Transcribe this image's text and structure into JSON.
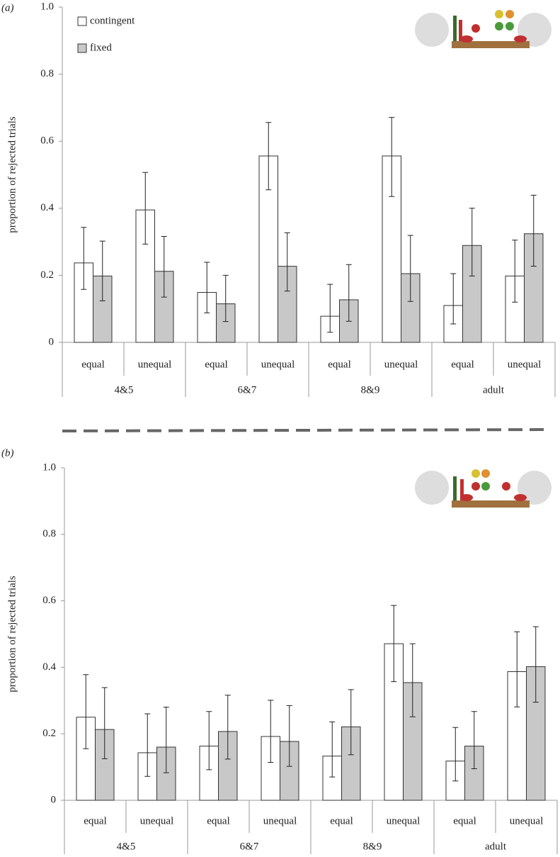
{
  "chart_data": [
    {
      "type": "bar",
      "panel_label": "(a)",
      "y_label": "proportion of rejected trials",
      "groups": [
        "4&5",
        "6&7",
        "8&9",
        "adult"
      ],
      "categories": [
        "equal",
        "unequal",
        "equal",
        "unequal",
        "equal",
        "unequal",
        "equal",
        "unequal"
      ],
      "series": [
        {
          "name": "contingent",
          "color": "#ffffff",
          "values": [
            0.237,
            0.395,
            0.149,
            0.556,
            0.078,
            0.556,
            0.11,
            0.198
          ],
          "error_low": [
            0.158,
            0.293,
            0.088,
            0.455,
            0.03,
            0.435,
            0.055,
            0.12
          ],
          "error_high": [
            0.343,
            0.507,
            0.239,
            0.656,
            0.173,
            0.671,
            0.205,
            0.305
          ]
        },
        {
          "name": "fixed",
          "color": "#c8c8c8",
          "values": [
            0.198,
            0.212,
            0.115,
            0.227,
            0.127,
            0.205,
            0.289,
            0.324
          ],
          "error_low": [
            0.124,
            0.135,
            0.062,
            0.153,
            0.063,
            0.122,
            0.198,
            0.227
          ],
          "error_high": [
            0.302,
            0.316,
            0.2,
            0.327,
            0.232,
            0.319,
            0.4,
            0.439
          ]
        }
      ],
      "ylim": [
        0,
        1
      ],
      "yticks": [
        0,
        0.2,
        0.4,
        0.6,
        0.8,
        {
          "value": 1,
          "label": "1.0"
        }
      ],
      "legend": "upper left"
    },
    {
      "type": "bar",
      "panel_label": "(b)",
      "y_label": "proportion of rejected trials",
      "groups": [
        "4&5",
        "6&7",
        "8&9",
        "adult"
      ],
      "categories": [
        "equal",
        "unequal",
        "equal",
        "unequal",
        "equal",
        "unequal",
        "equal",
        "unequal"
      ],
      "series": [
        {
          "color": "#ffffff",
          "values": [
            0.25,
            0.143,
            0.163,
            0.192,
            0.133,
            0.471,
            0.118,
            0.387
          ],
          "error_low": [
            0.155,
            0.072,
            0.092,
            0.114,
            0.07,
            0.357,
            0.058,
            0.281
          ],
          "error_high": [
            0.378,
            0.26,
            0.267,
            0.301,
            0.236,
            0.586,
            0.219,
            0.507
          ]
        },
        {
          "color": "#c8c8c8",
          "values": [
            0.213,
            0.16,
            0.207,
            0.177,
            0.221,
            0.354,
            0.163,
            0.402
          ],
          "error_low": [
            0.125,
            0.083,
            0.124,
            0.102,
            0.137,
            0.251,
            0.095,
            0.295
          ],
          "error_high": [
            0.339,
            0.28,
            0.316,
            0.285,
            0.333,
            0.471,
            0.267,
            0.522
          ]
        }
      ],
      "ylim": [
        0,
        1
      ],
      "yticks": [
        0,
        0.2,
        0.4,
        0.6,
        0.8,
        {
          "value": 1,
          "label": "1.0"
        }
      ]
    }
  ]
}
